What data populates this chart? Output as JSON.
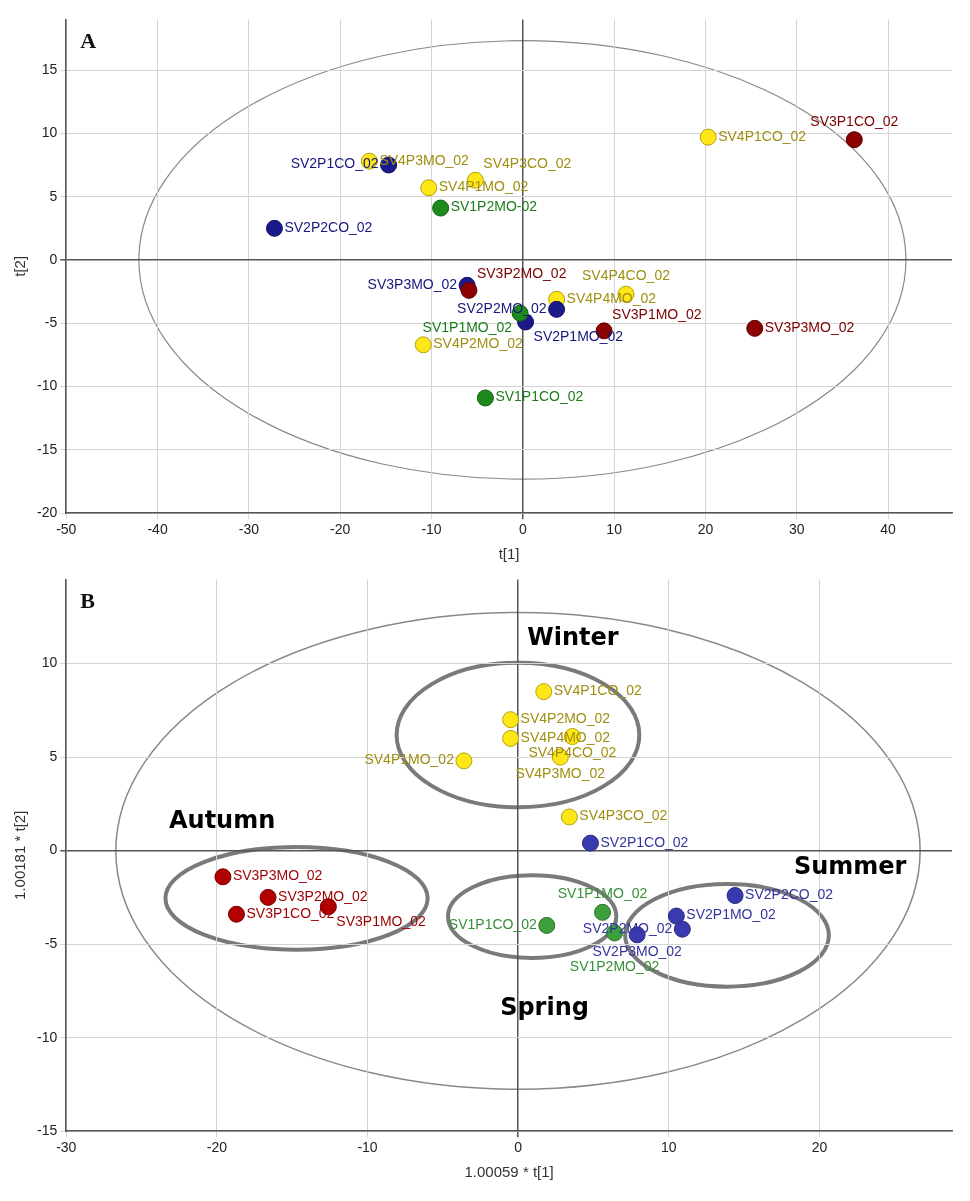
{
  "chart_data": [
    {
      "type": "scatter",
      "title": "A",
      "xlabel": "t[1]",
      "ylabel": "t[2]",
      "xlim": [
        -50,
        47
      ],
      "ylim": [
        -20,
        19
      ],
      "xticks": [
        -50,
        -40,
        -30,
        -20,
        -10,
        0,
        10,
        20,
        30,
        40
      ],
      "yticks": [
        -20,
        -15,
        -10,
        -5,
        0,
        5,
        10,
        15
      ],
      "grid": true,
      "legend": false,
      "marker": "circle",
      "series": [
        {
          "color": "#ffe617",
          "x": [
            -16.8,
            -10.3,
            -5.2,
            20.3,
            3.7,
            11.3,
            -10.9
          ],
          "values": [
            7.8,
            5.7,
            6.3,
            9.7,
            -3.1,
            -2.7,
            -6.7
          ]
        },
        {
          "color": "#1a1a8c",
          "x": [
            -14.7,
            -27.2,
            -6.1,
            3.7,
            0.3
          ],
          "values": [
            7.5,
            2.5,
            -2.0,
            -3.9,
            -4.9
          ]
        },
        {
          "color": "#1e8a1e",
          "x": [
            -9.0,
            -0.3,
            -4.1
          ],
          "values": [
            4.1,
            -4.2,
            -10.9
          ]
        },
        {
          "color": "#8b0000",
          "x": [
            36.3,
            -5.9,
            8.9,
            25.4
          ],
          "values": [
            9.5,
            -2.4,
            -5.6,
            -5.4
          ]
        }
      ],
      "annotations": [
        {
          "text": "SV4P3MO_02",
          "x": -16.8,
          "y": 7.8
        },
        {
          "text": "SV4P1MO_02",
          "x": -10.3,
          "y": 5.7
        },
        {
          "text": "SV4P3CO_02",
          "x": -5.2,
          "y": 6.3
        },
        {
          "text": "SV4P1CO_02",
          "x": 20.3,
          "y": 9.7
        },
        {
          "text": "SV4P4MO_02",
          "x": 3.7,
          "y": -3.1
        },
        {
          "text": "SV4P4CO_02",
          "x": 11.3,
          "y": -2.7
        },
        {
          "text": "SV4P2MO_02",
          "x": -10.9,
          "y": -6.7
        },
        {
          "text": "SV2P1CO_02",
          "x": -14.7,
          "y": 7.5
        },
        {
          "text": "SV2P2CO_02",
          "x": -27.2,
          "y": 2.5
        },
        {
          "text": "SV3P3MO_02",
          "x": -6.1,
          "y": -2.0
        },
        {
          "text": "SV2P2MO_02",
          "x": 3.7,
          "y": -3.9
        },
        {
          "text": "SV2P1MO_02",
          "x": 0.3,
          "y": -4.9
        },
        {
          "text": "SV1P2MO-02",
          "x": -9.0,
          "y": 4.1
        },
        {
          "text": "SV1P1MO_02",
          "x": -0.3,
          "y": -4.2
        },
        {
          "text": "SV1P1CO_02",
          "x": -4.1,
          "y": -10.9
        },
        {
          "text": "SV3P1CO_02",
          "x": 36.3,
          "y": 9.5
        },
        {
          "text": "SV3P2MO_02",
          "x": -5.9,
          "y": -2.4
        },
        {
          "text": "SV3P1MO_02",
          "x": 8.9,
          "y": -5.6
        },
        {
          "text": "SV3P3MO_02",
          "x": 25.4,
          "y": -5.4
        }
      ]
    },
    {
      "type": "scatter",
      "title": "B",
      "xlabel": "1.00059 * t[1]",
      "ylabel": "1.00181 * t[2]",
      "xlim": [
        -30,
        28.8
      ],
      "ylim": [
        -15,
        14.5
      ],
      "xticks": [
        -30,
        -20,
        -10,
        0,
        10,
        20
      ],
      "yticks": [
        -15,
        -10,
        -5,
        0,
        5,
        10
      ],
      "grid": true,
      "legend": false,
      "marker": "circle",
      "series": [
        {
          "color": "#ffe617",
          "x": [
            1.7,
            -0.5,
            -0.5,
            3.6,
            2.8,
            -3.6,
            3.4
          ],
          "values": [
            8.5,
            7.0,
            6.0,
            6.1,
            5.0,
            4.8,
            1.8
          ]
        },
        {
          "color": "#3a3ab0",
          "x": [
            4.8,
            14.4,
            10.5,
            10.9,
            7.9
          ],
          "values": [
            0.4,
            -2.4,
            -3.5,
            -4.2,
            -4.5
          ]
        },
        {
          "color": "#3ca03c",
          "x": [
            1.9,
            5.6,
            6.4
          ],
          "values": [
            -4.0,
            -3.3,
            -4.4
          ]
        },
        {
          "color": "#b00000",
          "x": [
            -19.6,
            -18.7,
            -16.6,
            -12.6
          ],
          "values": [
            -1.4,
            -3.4,
            -2.5,
            -3.0
          ]
        }
      ],
      "annotations": [
        "Winter",
        "Autumn",
        "Summer",
        "Spring",
        {
          "text": "SV4P1CO_02",
          "x": 1.7,
          "y": 8.5
        },
        {
          "text": "SV4P2MO_02",
          "x": -0.5,
          "y": 7.0
        },
        {
          "text": "SV4P4MO_02",
          "x": -0.5,
          "y": 6.0
        },
        {
          "text": "SV4P4CO_02",
          "x": 3.6,
          "y": 6.1
        },
        {
          "text": "SV4P3MO_02",
          "x": 2.8,
          "y": 5.0
        },
        {
          "text": "SV4P1MO_02",
          "x": -3.6,
          "y": 4.8
        },
        {
          "text": "SV4P3CO_02",
          "x": 3.4,
          "y": 1.8
        },
        {
          "text": "SV2P1CO_02",
          "x": 4.8,
          "y": 0.4
        },
        {
          "text": "SV2P2CO_02",
          "x": 14.4,
          "y": -2.4
        },
        {
          "text": "SV2P1MO_02",
          "x": 10.5,
          "y": -3.5
        },
        {
          "text": "SV2P2MO_02",
          "x": 10.9,
          "y": -4.2
        },
        {
          "text": "SV2P3MO_02",
          "x": 7.9,
          "y": -4.5
        },
        {
          "text": "SV1P1CO_02",
          "x": 1.9,
          "y": -4.0
        },
        {
          "text": "SV1P1MO_02",
          "x": 5.6,
          "y": -3.3
        },
        {
          "text": "SV1P2MO_02",
          "x": 6.4,
          "y": -4.4
        },
        {
          "text": "SV3P3MO_02",
          "x": -19.6,
          "y": -1.4
        },
        {
          "text": "SV3P1CO_02",
          "x": -18.7,
          "y": -3.4
        },
        {
          "text": "SV3P2MO_02",
          "x": -16.6,
          "y": -2.5
        },
        {
          "text": "SV3P1MO_02",
          "x": -12.6,
          "y": -3.0
        }
      ]
    }
  ]
}
